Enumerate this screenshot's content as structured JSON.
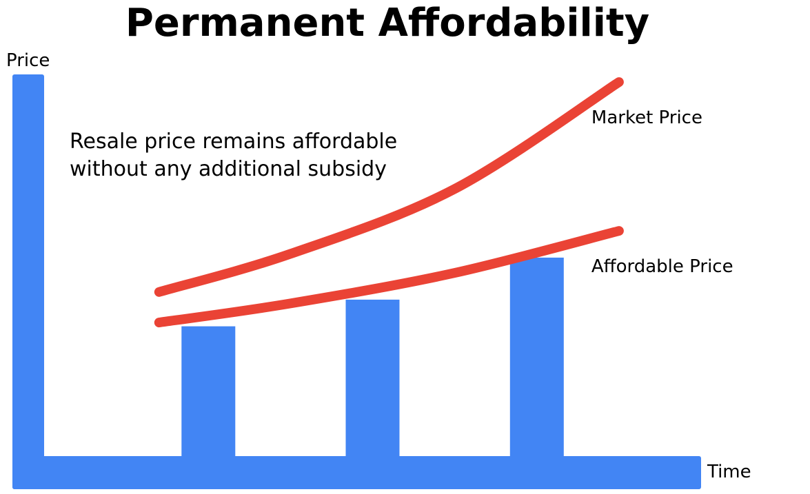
{
  "chart_data": {
    "type": "bar",
    "title": "Permanent Affordability",
    "xlabel": "Time",
    "ylabel": "Price",
    "annotation": {
      "lines": [
        "Resale price remains affordable",
        "without any additional subsidy"
      ]
    },
    "x_range": [
      0,
      4
    ],
    "ylim": [
      0,
      100
    ],
    "grid": false,
    "legend": "none",
    "bars": {
      "name": "",
      "x": [
        1,
        2,
        3
      ],
      "values": [
        34,
        41,
        52
      ],
      "color": "#4285F4"
    },
    "lines": [
      {
        "name": "Market Price",
        "x": [
          0.7,
          1.5,
          2.5,
          3.5
        ],
        "values": [
          43,
          53,
          70,
          98
        ],
        "color": "#EA4335"
      },
      {
        "name": "Affordable Price",
        "x": [
          0.7,
          1.5,
          2.5,
          3.5
        ],
        "values": [
          35,
          40,
          48,
          59
        ],
        "color": "#EA4335"
      }
    ],
    "axis_color": "#4285F4"
  }
}
